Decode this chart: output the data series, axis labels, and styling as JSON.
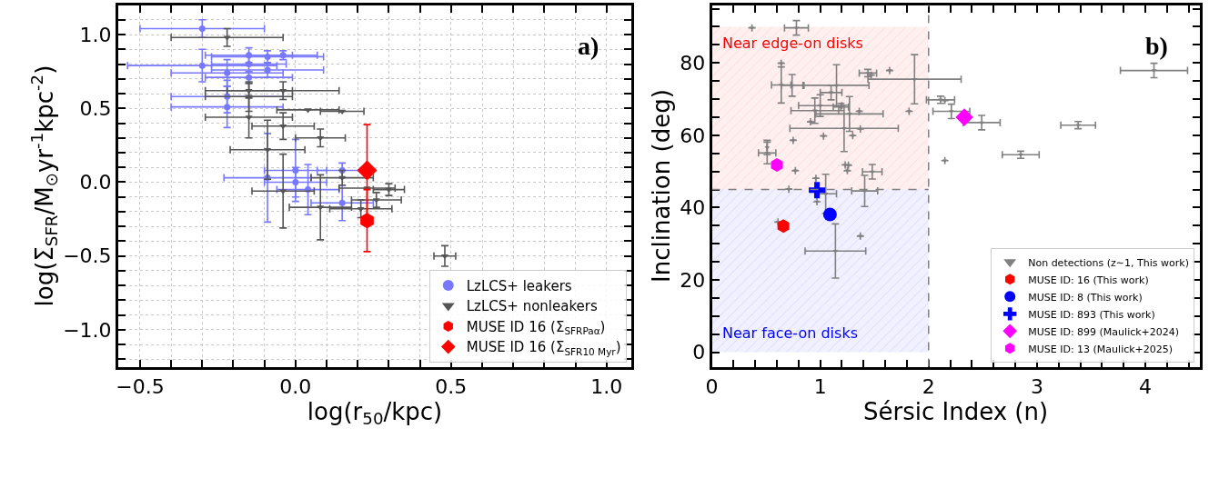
{
  "chart_data": [
    {
      "type": "scatter",
      "xlabel": "log(r$_{50}$/kpc)",
      "ylabel": "log(Σ$_{SFR}$/M$_{⊙}$yr$^{-1}$kpc$^{-2}$)",
      "annotations": [
        "a)"
      ],
      "xlim": [
        -0.57,
        1.08
      ],
      "ylim": [
        -1.25,
        1.2
      ],
      "xticks": [
        {
          "value": -0.5,
          "label": "−0.5"
        },
        {
          "value": -0.4,
          "label": null
        },
        {
          "value": -0.3,
          "label": null
        },
        {
          "value": -0.2,
          "label": null
        },
        {
          "value": -0.1,
          "label": null
        },
        {
          "value": 0,
          "label": "0.0"
        },
        {
          "value": 0.1,
          "label": null
        },
        {
          "value": 0.2,
          "label": null
        },
        {
          "value": 0.3,
          "label": null
        },
        {
          "value": 0.4,
          "label": null
        },
        {
          "value": 0.5,
          "label": "0.5"
        },
        {
          "value": 0.6,
          "label": null
        },
        {
          "value": 0.7,
          "label": null
        },
        {
          "value": 0.8,
          "label": null
        },
        {
          "value": 0.9,
          "label": null
        },
        {
          "value": 1.0,
          "label": "1.0"
        }
      ],
      "yticks": [
        {
          "value": -1.2,
          "label": null
        },
        {
          "value": -1.1,
          "label": null
        },
        {
          "value": -1.0,
          "label": "−1.0"
        },
        {
          "value": -0.9,
          "label": null
        },
        {
          "value": -0.8,
          "label": null
        },
        {
          "value": -0.7,
          "label": null
        },
        {
          "value": -0.6,
          "label": null
        },
        {
          "value": -0.5,
          "label": "−0.5"
        },
        {
          "value": -0.4,
          "label": null
        },
        {
          "value": -0.3,
          "label": null
        },
        {
          "value": -0.2,
          "label": null
        },
        {
          "value": -0.1,
          "label": null
        },
        {
          "value": 0,
          "label": "0.0"
        },
        {
          "value": 0.1,
          "label": null
        },
        {
          "value": 0.2,
          "label": null
        },
        {
          "value": 0.3,
          "label": null
        },
        {
          "value": 0.4,
          "label": null
        },
        {
          "value": 0.5,
          "label": "0.5"
        },
        {
          "value": 0.6,
          "label": null
        },
        {
          "value": 0.7,
          "label": null
        },
        {
          "value": 0.8,
          "label": null
        },
        {
          "value": 0.9,
          "label": null
        },
        {
          "value": 1.0,
          "label": "1.0"
        },
        {
          "value": 1.1,
          "label": null
        }
      ],
      "grid": true,
      "legend": "bottom right",
      "series": [
        {
          "name": "LzLCS+ leakers",
          "color": "#7777ff",
          "marker": "circle",
          "x": [
            -0.3,
            -0.15,
            -0.09,
            -0.04,
            -0.3,
            -0.15,
            -0.22,
            -0.09,
            -0.15,
            -0.22,
            -0.22,
            -0.09,
            0.0,
            0.0,
            0.04,
            0.15,
            0.15
          ],
          "values": [
            1.04,
            0.86,
            0.85,
            0.86,
            0.79,
            0.8,
            0.74,
            0.76,
            0.71,
            0.58,
            0.51,
            0.03,
            0.08,
            0.0,
            -0.05,
            0.08,
            -0.14
          ],
          "xerrors": [
            0.2,
            0.14,
            0.18,
            0.11,
            0.24,
            0.12,
            0.18,
            0.18,
            0.14,
            0.18,
            0.18,
            0.14,
            0.1,
            0.1,
            0.1,
            0.08,
            0.1
          ],
          "errors": [
            0.06,
            0.05,
            0.04,
            0.03,
            0.11,
            0.06,
            0.09,
            0.05,
            0.04,
            0.11,
            0.14,
            0.3,
            0.21,
            0.1,
            0.17,
            0.05,
            0.12
          ]
        },
        {
          "name": "LzLCS+ nonleakers",
          "color": "#555555",
          "marker": "triangle",
          "x": [
            -0.22,
            -0.15,
            -0.04,
            -0.15,
            -0.15,
            0.04,
            0.15,
            -0.04,
            0.08,
            -0.09,
            0.15,
            -0.04,
            0.23,
            0.3,
            0.26,
            0.08,
            0.21,
            0.48
          ],
          "values": [
            0.98,
            0.62,
            0.62,
            0.58,
            0.44,
            0.49,
            0.48,
            0.38,
            0.3,
            0.22,
            0.03,
            -0.06,
            -0.04,
            -0.05,
            -0.12,
            -0.17,
            -0.18,
            -0.5
          ],
          "xerrors": [
            0.18,
            0.14,
            0.18,
            0.14,
            0.14,
            0.1,
            0.07,
            0.1,
            0.08,
            0.12,
            0.1,
            0.1,
            0.09,
            0.05,
            0.08,
            0.1,
            0.1,
            0.035
          ],
          "errors": [
            0.06,
            0.05,
            0.06,
            0.1,
            0.14,
            null,
            null,
            0.09,
            0.06,
            0.2,
            0.05,
            0.25,
            null,
            0.04,
            0.05,
            0.22,
            0.06,
            0.07
          ]
        },
        {
          "name": "MUSE ID 16 (Σ$_{SFR}$$_{Paα}$)",
          "color": "#ff0000",
          "x": [
            0.23
          ],
          "values": [
            -0.26
          ],
          "errors": [
            0.21
          ]
        },
        {
          "name": "MUSE ID 16 (Σ$_{SFR}$$_{10 Myr}$)",
          "color": "#ff0000",
          "marker": "diamond",
          "x": [
            0.23
          ],
          "values": [
            0.08
          ],
          "errors": [
            0.31
          ]
        }
      ]
    },
    {
      "type": "scatter",
      "xlabel": "Sérsic Index (n)",
      "ylabel": "Inclination (deg)",
      "annotations": [
        "b)"
      ],
      "xlim": [
        0,
        4.5
      ],
      "ylim": [
        -4,
        96
      ],
      "xticks": [
        {
          "value": 0,
          "label": "0"
        },
        {
          "value": 0.2,
          "label": null
        },
        {
          "value": 0.4,
          "label": null
        },
        {
          "value": 0.6,
          "label": null
        },
        {
          "value": 0.8,
          "label": null
        },
        {
          "value": 1,
          "label": "1"
        },
        {
          "value": 1.2,
          "label": null
        },
        {
          "value": 1.4,
          "label": null
        },
        {
          "value": 1.6,
          "label": null
        },
        {
          "value": 1.8,
          "label": null
        },
        {
          "value": 2,
          "label": "2"
        },
        {
          "value": 2.2,
          "label": null
        },
        {
          "value": 2.4,
          "label": null
        },
        {
          "value": 2.6,
          "label": null
        },
        {
          "value": 2.8,
          "label": null
        },
        {
          "value": 3,
          "label": "3"
        },
        {
          "value": 3.2,
          "label": null
        },
        {
          "value": 3.4,
          "label": null
        },
        {
          "value": 3.6,
          "label": null
        },
        {
          "value": 3.8,
          "label": null
        },
        {
          "value": 4,
          "label": "4"
        },
        {
          "value": 4.2,
          "label": null
        },
        {
          "value": 4.4,
          "label": null
        }
      ],
      "yticks": [
        {
          "value": 0,
          "label": "0"
        },
        {
          "value": 5,
          "label": null
        },
        {
          "value": 10,
          "label": null
        },
        {
          "value": 15,
          "label": null
        },
        {
          "value": 20,
          "label": "20"
        },
        {
          "value": 25,
          "label": null
        },
        {
          "value": 30,
          "label": null
        },
        {
          "value": 35,
          "label": null
        },
        {
          "value": 40,
          "label": "40"
        },
        {
          "value": 45,
          "label": null
        },
        {
          "value": 50,
          "label": null
        },
        {
          "value": 55,
          "label": null
        },
        {
          "value": 60,
          "label": "60"
        },
        {
          "value": 65,
          "label": null
        },
        {
          "value": 70,
          "label": null
        },
        {
          "value": 75,
          "label": null
        },
        {
          "value": 80,
          "label": "80"
        },
        {
          "value": 85,
          "label": null
        },
        {
          "value": 90,
          "label": null
        },
        {
          "value": 95,
          "label": null
        }
      ],
      "legend": "bottom right",
      "ref_lines": [
        {
          "axis": "x",
          "value": 2,
          "color": "#808080",
          "line_style": "dashed"
        },
        {
          "axis": "y",
          "value": 45,
          "color": "#808080",
          "line_style": "dashed"
        }
      ],
      "bands": [
        {
          "axis": "y",
          "from": 45,
          "to": 90,
          "label": "Near edge-on disks",
          "color": "#ff0000"
        },
        {
          "axis": "y",
          "from": 0,
          "to": 45,
          "label": "Near face-on disks",
          "color": "#0000ff"
        }
      ],
      "series": [
        {
          "name": "Non detections (z∼1, This work)",
          "color": "#808080",
          "marker": "triangle",
          "x": [
            0.37,
            0.78,
            0.64,
            1.44,
            1.47,
            1.64,
            1.87,
            0.64,
            0.74,
            1.15,
            1.1,
            1.0,
            1.19,
            0.95,
            1.27,
            1.36,
            1.82,
            0.91,
            1.22,
            1.37,
            1.03,
            0.75,
            1.3,
            0.51,
            0.51,
            1.23,
            1.26,
            1.25,
            0.77,
            1.48,
            0.96,
            2.15,
            2.11,
            2.15,
            2.21,
            0.71,
            1.41,
            1.05,
            0.97,
            0.61,
            1.37,
            1.14,
            2.49,
            3.38,
            2.85,
            4.08
          ],
          "values": [
            89.7,
            89.7,
            79.9,
            77.2,
            76.6,
            77.9,
            75.5,
            73.9,
            73.8,
            73.8,
            71.8,
            68.2,
            67.8,
            66.8,
            65.9,
            66.6,
            66.6,
            63.7,
            61.9,
            61.7,
            59.8,
            58.6,
            59.9,
            56.6,
            55.1,
            51.8,
            51.7,
            50.2,
            50.2,
            49.9,
            48.1,
            53.0,
            69.8,
            69.6,
            66.6,
            45.1,
            44.6,
            43.8,
            41.6,
            36.0,
            32.1,
            28.0,
            63.5,
            62.8,
            54.6,
            77.9
          ],
          "xerrors": [
            null,
            0.11,
            null,
            0.08,
            null,
            null,
            0.43,
            0.09,
            0.1,
            0.3,
            0.1,
            0.2,
            0.07,
            0.22,
            0.31,
            null,
            null,
            null,
            0.5,
            null,
            null,
            null,
            null,
            null,
            0.08,
            null,
            null,
            null,
            null,
            0.09,
            null,
            null,
            0.13,
            null,
            0.17,
            null,
            0.12,
            0.1,
            null,
            null,
            null,
            0.28,
            0.17,
            0.16,
            0.17,
            0.31
          ],
          "errors": [
            null,
            2,
            null,
            1,
            null,
            null,
            6.8,
            5,
            3,
            5.7,
            2,
            3,
            1,
            3.5,
            4.8,
            null,
            null,
            null,
            6.4,
            null,
            null,
            null,
            null,
            2,
            3,
            null,
            null,
            null,
            null,
            2,
            null,
            null,
            1,
            null,
            2,
            null,
            4.3,
            5.4,
            null,
            null,
            null,
            7.5,
            2,
            1,
            1,
            2
          ]
        },
        {
          "name": "MUSE ID: 16 (This work)",
          "color": "#ff0000",
          "x": [
            0.66
          ],
          "values": [
            34.9
          ]
        },
        {
          "name": "MUSE ID: 8 (This work)",
          "color": "#0000ff",
          "marker": "circle",
          "x": [
            1.09
          ],
          "values": [
            38.1
          ]
        },
        {
          "name": "MUSE ID: 893 (This work)",
          "color": "#0000ff",
          "marker": "cross",
          "x": [
            0.97
          ],
          "values": [
            44.8
          ]
        },
        {
          "name": "MUSE ID: 899 (Maulick+2024)",
          "color": "#ff00ff",
          "marker": "diamond",
          "x": [
            2.33
          ],
          "values": [
            65.0
          ]
        },
        {
          "name": "MUSE ID: 13 (Maulick+2025)",
          "color": "#ff00ff",
          "x": [
            0.6
          ],
          "values": [
            51.8
          ]
        }
      ]
    }
  ]
}
